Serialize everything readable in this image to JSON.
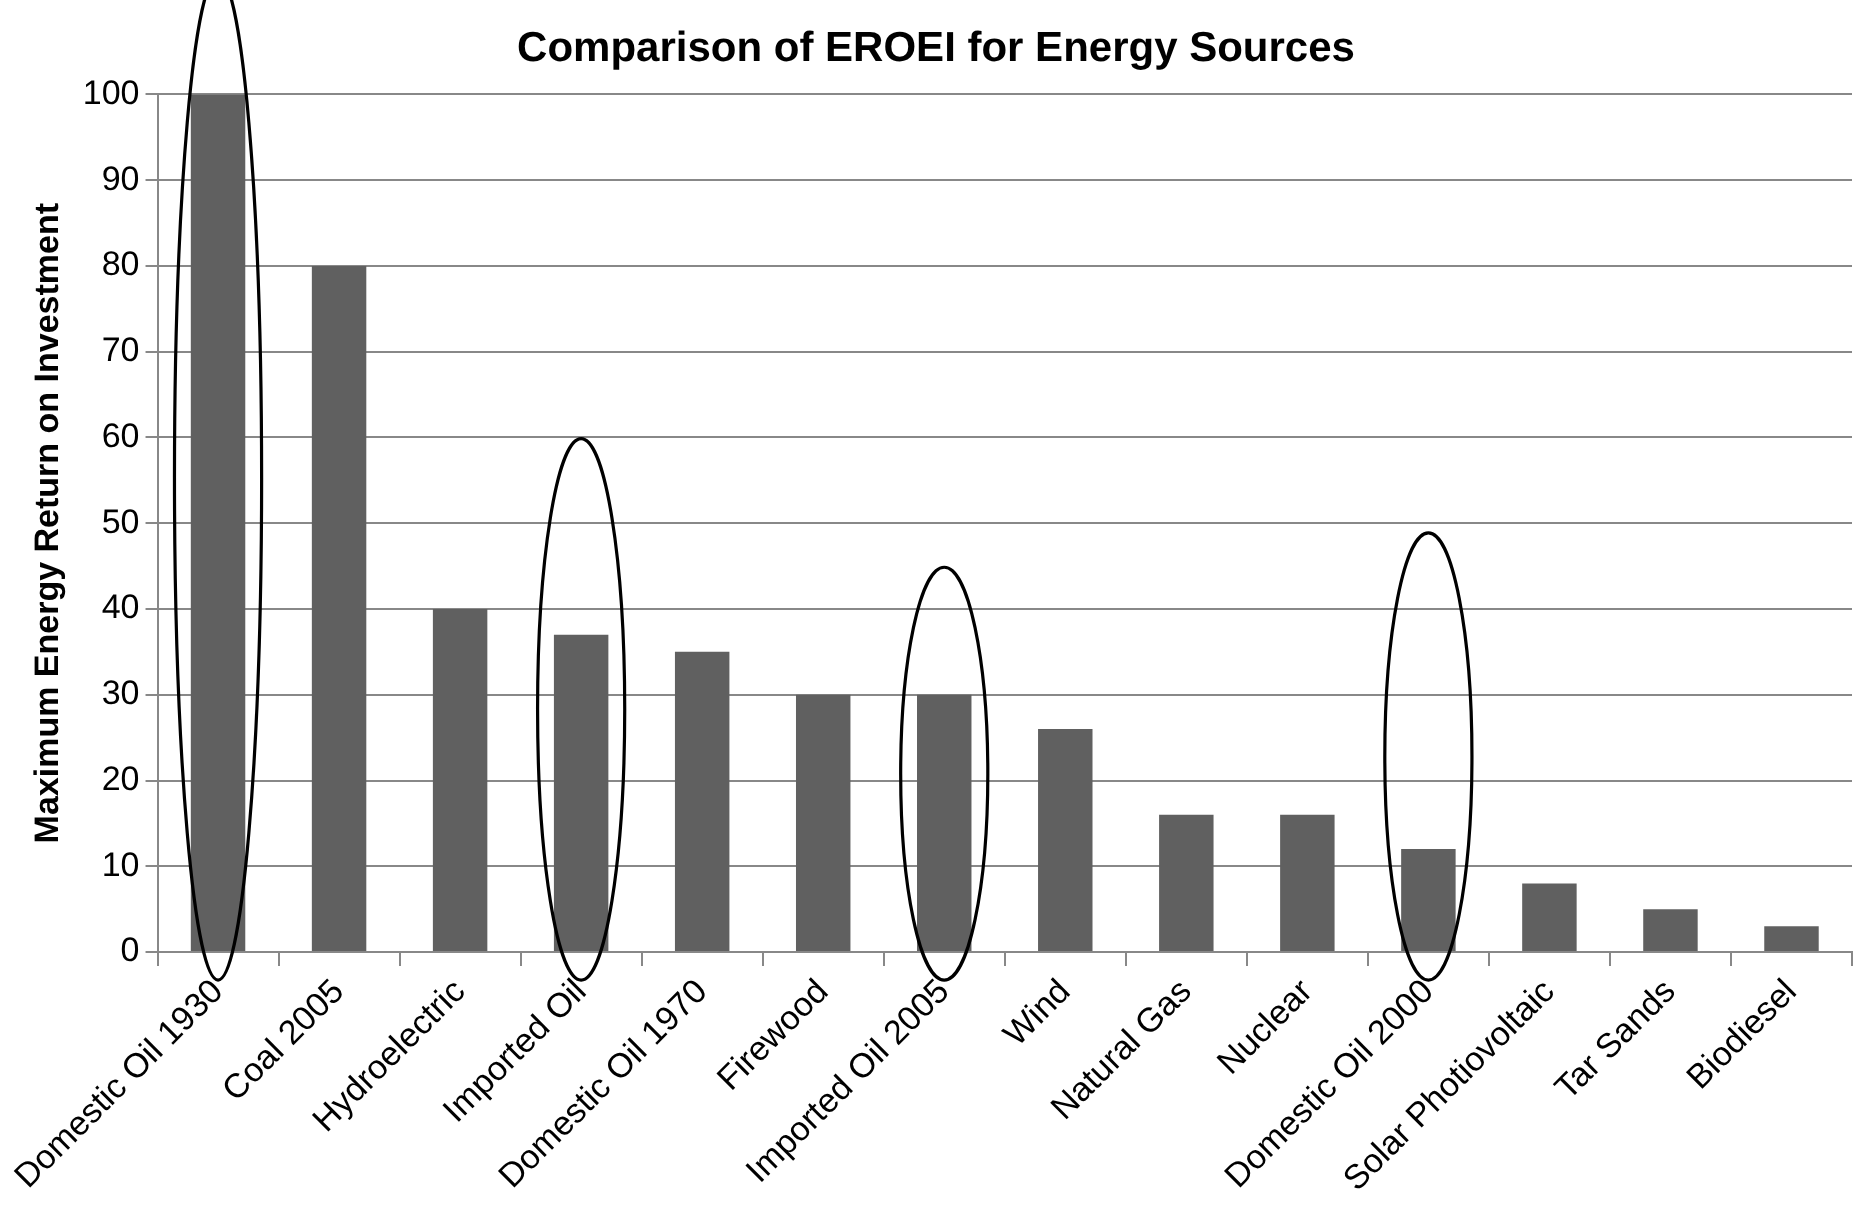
{
  "chart_data": {
    "type": "bar",
    "title": "Comparison of EROEI for Energy Sources",
    "ylabel": "Maximum Energy Return on Investment",
    "categories": [
      "Domestic Oil 1930",
      "Coal 2005",
      "Hydroelectric",
      "Imported Oil",
      "Domestic Oil 1970",
      "Firewood",
      "Imported Oil 2005",
      "Wind",
      "Natural Gas",
      "Nuclear",
      "Domestic Oil 2000",
      "Solar Photiovoltaic",
      "Tar Sands",
      "Biodiesel"
    ],
    "values": [
      100,
      80,
      40,
      37,
      35,
      30,
      30,
      26,
      16,
      16,
      12,
      8,
      5,
      3
    ],
    "color": "#606060",
    "ylim": [
      0,
      100
    ],
    "yticks": [
      0,
      10,
      20,
      30,
      40,
      50,
      60,
      70,
      80,
      90,
      100
    ],
    "grid": "y",
    "legend": false
  }
}
